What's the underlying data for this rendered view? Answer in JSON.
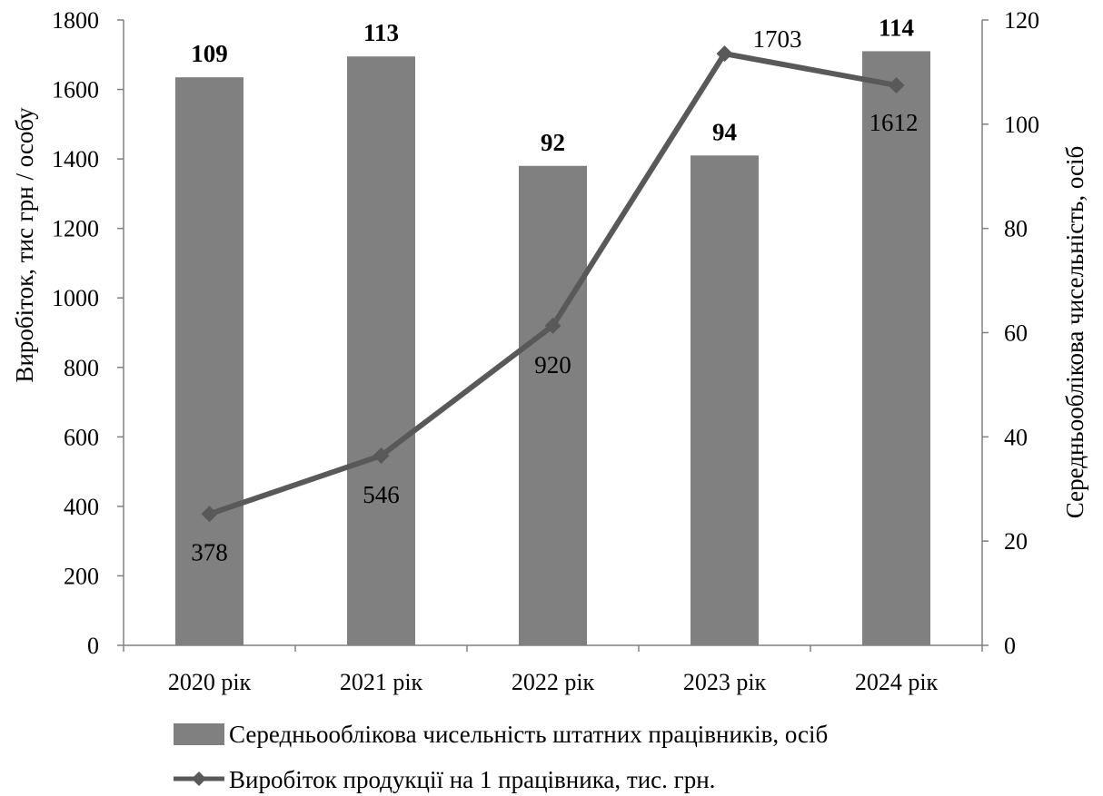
{
  "chart_data": {
    "type": "bar",
    "categories": [
      "2020 рік",
      "2021 рік",
      "2022 рік",
      "2023 рік",
      "2024 рік"
    ],
    "series": [
      {
        "name": "Середньооблікова чисельність штатних працівників, осіб",
        "type": "bar",
        "axis": "right",
        "values": [
          109,
          113,
          92,
          94,
          114
        ],
        "color": "#808080"
      },
      {
        "name": "Виробіток продукції на 1 працівника, тис. грн.",
        "type": "line",
        "axis": "left",
        "values": [
          378,
          546,
          920,
          1703,
          1612
        ],
        "color": "#595959",
        "marker": "diamond"
      }
    ],
    "ylabel": "Виробіток, тис грн / особу",
    "ylabel_right": "Середньооблікова чисельність, осіб",
    "ylim": [
      0,
      1800
    ],
    "ylim_right": [
      0,
      120
    ],
    "yticks": [
      "0",
      "200",
      "400",
      "600",
      "800",
      "1000",
      "1200",
      "1400",
      "1600",
      "1800"
    ],
    "yticks_right": [
      "0",
      "20",
      "40",
      "60",
      "80",
      "100",
      "120"
    ],
    "grid": false,
    "legend": "bottom"
  }
}
